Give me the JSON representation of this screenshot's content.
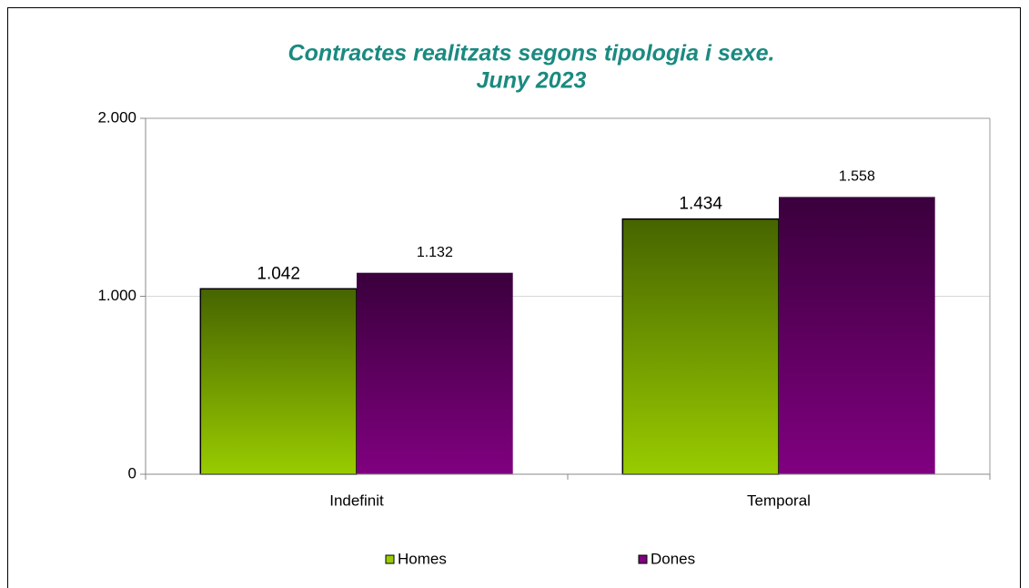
{
  "chart_data": {
    "type": "bar",
    "title": "Contractes realitzats segons tipologia i sexe.",
    "subtitle": "Juny 2023",
    "categories": [
      "Indefinit",
      "Temporal"
    ],
    "series": [
      {
        "name": "Homes",
        "color": "#99cc00",
        "values": [
          1042,
          1434
        ],
        "value_labels": [
          "1.042",
          "1.434"
        ]
      },
      {
        "name": "Dones",
        "color": "#800080",
        "values": [
          1132,
          1558
        ],
        "value_labels": [
          "1.132",
          "1.558"
        ]
      }
    ],
    "ylim": [
      0,
      2000
    ],
    "yticks": [
      {
        "value": 0,
        "label": "0"
      },
      {
        "value": 1000,
        "label": "1.000"
      },
      {
        "value": 2000,
        "label": "2.000"
      }
    ],
    "grid": true,
    "legend": "bottom"
  }
}
